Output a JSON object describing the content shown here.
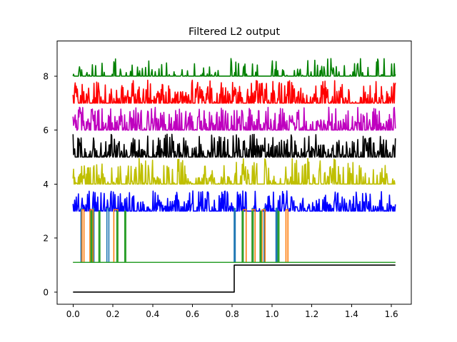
{
  "chart_data": {
    "type": "line",
    "title": "Filtered L2 output",
    "xlabel": "",
    "ylabel": "",
    "xlim": [
      -0.08,
      1.7
    ],
    "ylim": [
      -0.45,
      9.3
    ],
    "x_ticks": [
      0.0,
      0.2,
      0.4,
      0.6,
      0.8,
      1.0,
      1.2,
      1.4,
      1.6
    ],
    "x_tick_labels": [
      "0.0",
      "0.2",
      "0.4",
      "0.6",
      "0.8",
      "1.0",
      "1.2",
      "1.4",
      "1.6"
    ],
    "y_ticks": [
      0,
      2,
      4,
      6,
      8
    ],
    "y_tick_labels": [
      "0",
      "2",
      "4",
      "6",
      "8"
    ],
    "grid": false,
    "legend": "none",
    "t_end": 1.62,
    "stimulus": {
      "color": "#000000",
      "points": [
        [
          0.0,
          0.0
        ],
        [
          0.81,
          0.0
        ],
        [
          0.81,
          1.0
        ],
        [
          1.62,
          1.0
        ]
      ]
    },
    "series": [
      {
        "color": "#008000",
        "baseline": 8,
        "peak_max": 0.65,
        "density": 0.34,
        "seed": 11
      },
      {
        "color": "#ff0000",
        "baseline": 7,
        "peak_max": 0.85,
        "density": 0.85,
        "seed": 23
      },
      {
        "color": "#bf00bf",
        "baseline": 6,
        "peak_max": 0.85,
        "density": 0.95,
        "seed": 37
      },
      {
        "color": "#000000",
        "baseline": 5,
        "peak_max": 0.85,
        "density": 0.9,
        "seed": 41
      },
      {
        "color": "#bfbf00",
        "baseline": 4,
        "peak_max": 0.95,
        "density": 0.6,
        "seed": 53
      },
      {
        "color": "#0000ff",
        "baseline": 3,
        "peak_max": 0.75,
        "density": 0.75,
        "seed": 67
      }
    ],
    "pulse_trains": [
      {
        "color": "#1f77b4",
        "low": 1.1,
        "high": 3.1,
        "pulses": [
          [
            0.04,
            0.045
          ],
          [
            0.1,
            0.105
          ],
          [
            0.17,
            0.18
          ],
          [
            0.81,
            0.815
          ],
          [
            0.9,
            0.905
          ],
          [
            0.96,
            0.965
          ],
          [
            1.02,
            1.025
          ]
        ]
      },
      {
        "color": "#ff7f0e",
        "low": 1.1,
        "high": 3.05,
        "pulses": [
          [
            0.045,
            0.055
          ],
          [
            0.085,
            0.1
          ],
          [
            0.205,
            0.225
          ],
          [
            0.855,
            0.87
          ],
          [
            0.9,
            0.915
          ],
          [
            0.95,
            0.965
          ],
          [
            1.07,
            1.08
          ]
        ]
      },
      {
        "color": "#2ca02c",
        "low": 1.1,
        "high": 3.0,
        "pulses": [
          [
            0.09,
            0.095
          ],
          [
            0.13,
            0.135
          ],
          [
            0.22,
            0.225
          ],
          [
            0.26,
            0.265
          ],
          [
            0.85,
            0.855
          ],
          [
            0.9,
            0.905
          ],
          [
            0.94,
            0.945
          ],
          [
            1.03,
            1.035
          ]
        ]
      }
    ]
  }
}
